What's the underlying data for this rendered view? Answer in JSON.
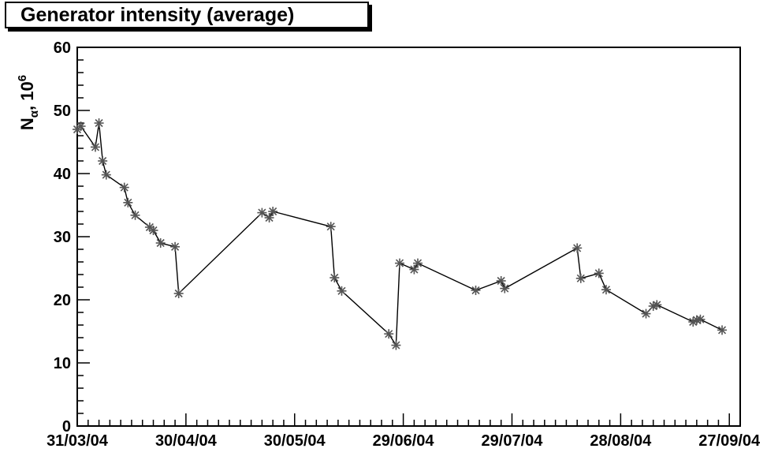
{
  "chart_data": {
    "type": "line",
    "title": "Generator intensity (average)",
    "ylabel": {
      "base": "N",
      "subscript": "α",
      "suffix": ", 10",
      "superscript": "6"
    },
    "xlabel": "",
    "x_axis_kind": "date",
    "xlim": [
      "2004-03-31",
      "2004-09-30"
    ],
    "ylim": [
      0,
      60
    ],
    "y_ticks": [
      {
        "value": 0,
        "label": "0"
      },
      {
        "value": 10,
        "label": "10"
      },
      {
        "value": 20,
        "label": "20"
      },
      {
        "value": 30,
        "label": "30"
      },
      {
        "value": 40,
        "label": "40"
      },
      {
        "value": 50,
        "label": "50"
      },
      {
        "value": 60,
        "label": "60"
      }
    ],
    "x_ticks": [
      {
        "value": "2004-03-31",
        "label": "31/03/04"
      },
      {
        "value": "2004-04-30",
        "label": "30/04/04"
      },
      {
        "value": "2004-05-30",
        "label": "30/05/04"
      },
      {
        "value": "2004-06-29",
        "label": "29/06/04"
      },
      {
        "value": "2004-07-29",
        "label": "29/07/04"
      },
      {
        "value": "2004-08-28",
        "label": "28/08/04"
      },
      {
        "value": "2004-09-27",
        "label": "27/09/04"
      }
    ],
    "grid": false,
    "marker": "asterisk",
    "line_color": "#000000",
    "marker_color": "#555555",
    "series": [
      {
        "points": [
          {
            "x": "2004-03-31",
            "y": 47.0
          },
          {
            "x": "2004-04-01",
            "y": 47.5
          },
          {
            "x": "2004-04-05",
            "y": 44.2
          },
          {
            "x": "2004-04-06",
            "y": 48.0
          },
          {
            "x": "2004-04-07",
            "y": 42.0
          },
          {
            "x": "2004-04-08",
            "y": 39.8
          },
          {
            "x": "2004-04-13",
            "y": 37.8
          },
          {
            "x": "2004-04-14",
            "y": 35.4
          },
          {
            "x": "2004-04-16",
            "y": 33.4
          },
          {
            "x": "2004-04-20",
            "y": 31.5
          },
          {
            "x": "2004-04-21",
            "y": 31.0
          },
          {
            "x": "2004-04-23",
            "y": 29.0
          },
          {
            "x": "2004-04-27",
            "y": 28.4
          },
          {
            "x": "2004-04-28",
            "y": 21.0
          },
          {
            "x": "2004-05-21",
            "y": 33.8
          },
          {
            "x": "2004-05-23",
            "y": 33.0
          },
          {
            "x": "2004-05-24",
            "y": 34.0
          },
          {
            "x": "2004-06-09",
            "y": 31.6
          },
          {
            "x": "2004-06-10",
            "y": 23.5
          },
          {
            "x": "2004-06-12",
            "y": 21.4
          },
          {
            "x": "2004-06-25",
            "y": 14.6
          },
          {
            "x": "2004-06-27",
            "y": 12.8
          },
          {
            "x": "2004-06-28",
            "y": 25.8
          },
          {
            "x": "2004-07-02",
            "y": 24.8
          },
          {
            "x": "2004-07-03",
            "y": 25.8
          },
          {
            "x": "2004-07-19",
            "y": 21.5
          },
          {
            "x": "2004-07-26",
            "y": 23.0
          },
          {
            "x": "2004-07-27",
            "y": 21.8
          },
          {
            "x": "2004-08-16",
            "y": 28.2
          },
          {
            "x": "2004-08-17",
            "y": 23.4
          },
          {
            "x": "2004-08-22",
            "y": 24.2
          },
          {
            "x": "2004-08-24",
            "y": 21.6
          },
          {
            "x": "2004-09-04",
            "y": 17.8
          },
          {
            "x": "2004-09-06",
            "y": 19.0
          },
          {
            "x": "2004-09-07",
            "y": 19.2
          },
          {
            "x": "2004-09-17",
            "y": 16.5
          },
          {
            "x": "2004-09-18",
            "y": 16.8
          },
          {
            "x": "2004-09-19",
            "y": 16.9
          },
          {
            "x": "2004-09-25",
            "y": 15.2
          }
        ]
      }
    ]
  }
}
